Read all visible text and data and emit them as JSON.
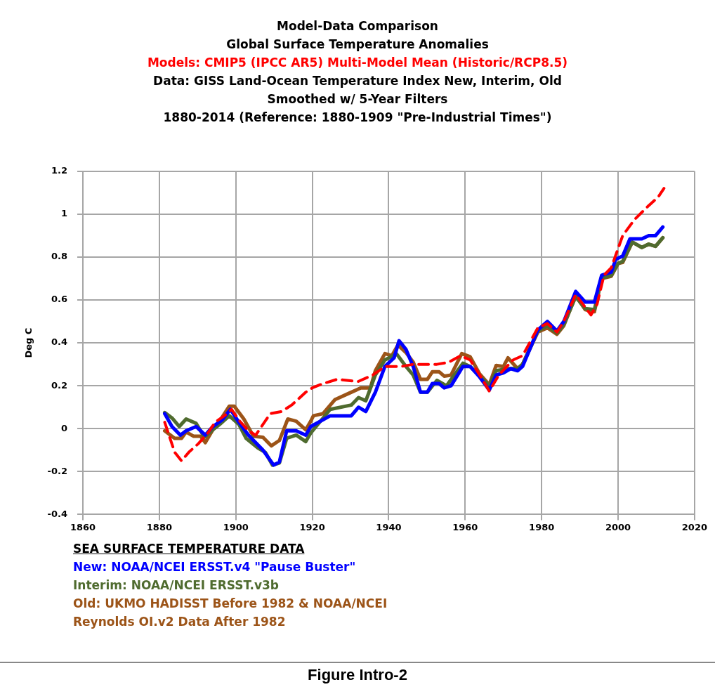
{
  "chart_data": {
    "type": "line",
    "title": "Model-Data Comparison",
    "subtitle": "Global Surface Temperature Anomalies",
    "ylabel": "Deg C",
    "legend_title": "SEA SURFACE TEMPERATURE DATA",
    "legend": "bottom left",
    "grid": true,
    "marker": "none",
    "xlim": [
      1860,
      2020
    ],
    "xticks": [
      1860,
      1880,
      1900,
      1920,
      1940,
      1960,
      1980,
      2000,
      2020
    ],
    "ylim": [
      -0.4,
      1.2
    ],
    "yticks": [
      -0.4,
      -0.2,
      0,
      0.2,
      0.4,
      0.6,
      0.8,
      1,
      1.2
    ],
    "annotations": [
      "Data: GISS Land-Ocean Temperature Index New, Interim, Old",
      "Smoothed w/ 5-Year Filters",
      "1880-2014 (Reference: 1880-1909 \"Pre-Industrial Times\")",
      "Figure Intro-2"
    ],
    "series": [
      {
        "name": "Models: CMIP5 (IPCC AR5) Multi-Model Mean (Historic/RCP8.5)",
        "color": "#ff0000",
        "line_style": "dashed",
        "x": [
          1881.4,
          1882.7,
          1884,
          1885.8,
          1887.7,
          1890.2,
          1892.7,
          1894.6,
          1897,
          1898.9,
          1900.8,
          1903.3,
          1905.2,
          1907.1,
          1909,
          1912,
          1914.6,
          1918.3,
          1920,
          1922.8,
          1926.5,
          1932,
          1935.8,
          1939,
          1943.3,
          1946.4,
          1952.6,
          1955.7,
          1958.8,
          1961.3,
          1963.8,
          1966.3,
          1968.8,
          1972.5,
          1975,
          1979,
          1981.5,
          1984,
          1985.8,
          1988.9,
          1990.8,
          1992.9,
          1994.5,
          1996.3,
          1998.2,
          2000,
          2001.2,
          2004.3,
          2008,
          2010.5,
          2012
        ],
        "values": [
          0.03,
          -0.04,
          -0.11,
          -0.15,
          -0.11,
          -0.07,
          -0.02,
          0.03,
          0.06,
          0.09,
          0.04,
          -0.01,
          -0.03,
          0.02,
          0.07,
          0.08,
          0.11,
          0.17,
          0.19,
          0.21,
          0.23,
          0.22,
          0.25,
          0.29,
          0.29,
          0.3,
          0.3,
          0.31,
          0.34,
          0.32,
          0.25,
          0.175,
          0.25,
          0.32,
          0.34,
          0.47,
          0.49,
          0.45,
          0.5,
          0.625,
          0.58,
          0.53,
          0.58,
          0.715,
          0.75,
          0.84,
          0.9,
          0.975,
          1.04,
          1.08,
          1.12
        ]
      },
      {
        "name": "New:  NOAA/NCEI ERSST.v4 \"Pause Buster\"",
        "color": "#0000ff",
        "x": [
          1881.4,
          1883.3,
          1885.5,
          1887,
          1889.6,
          1892,
          1894,
          1896.4,
          1898.6,
          1900.8,
          1903.3,
          1907.1,
          1909.9,
          1911.4,
          1913.3,
          1915.8,
          1918.3,
          1919.6,
          1924.7,
          1930.2,
          1932.1,
          1934,
          1936.5,
          1939,
          1941.4,
          1942.7,
          1944.5,
          1946.4,
          1948.3,
          1950.1,
          1951.4,
          1953.2,
          1954.5,
          1956.3,
          1959.4,
          1961.3,
          1963.8,
          1966.3,
          1968.1,
          1970,
          1971.9,
          1973.7,
          1975,
          1979,
          1981.5,
          1984,
          1985.8,
          1988.9,
          1991.4,
          1993.8,
          1995.7,
          1998.2,
          1999.4,
          2001.2,
          2003.1,
          2006.2,
          2008,
          2009.8,
          2011.7
        ],
        "values": [
          0.07,
          0.01,
          -0.03,
          -0.01,
          0.01,
          -0.03,
          0.01,
          0.04,
          0.09,
          0.03,
          -0.03,
          -0.1,
          -0.17,
          -0.155,
          -0.01,
          -0.01,
          -0.03,
          0.01,
          0.06,
          0.06,
          0.1,
          0.08,
          0.17,
          0.29,
          0.33,
          0.41,
          0.37,
          0.29,
          0.17,
          0.17,
          0.21,
          0.21,
          0.19,
          0.2,
          0.29,
          0.29,
          0.24,
          0.18,
          0.25,
          0.26,
          0.28,
          0.27,
          0.29,
          0.46,
          0.5,
          0.455,
          0.5,
          0.64,
          0.59,
          0.59,
          0.715,
          0.73,
          0.79,
          0.805,
          0.885,
          0.885,
          0.9,
          0.9,
          0.94
        ]
      },
      {
        "name": "Interim:  NOAA/NCEI ERSST.v3b",
        "color": "#4f6b2f",
        "x": [
          1881.4,
          1883.3,
          1885.2,
          1887,
          1889.6,
          1891.8,
          1894,
          1895.8,
          1898.3,
          1900.8,
          1902.7,
          1905.8,
          1907.7,
          1909.6,
          1911.4,
          1913.3,
          1915.8,
          1918.3,
          1919.6,
          1924.7,
          1930.2,
          1932.1,
          1934,
          1936.5,
          1939,
          1942,
          1944.5,
          1946.4,
          1948.3,
          1950.1,
          1952.6,
          1955.1,
          1959.4,
          1961.3,
          1966.3,
          1968.1,
          1971.2,
          1973.7,
          1975,
          1979,
          1981.5,
          1984,
          1985.8,
          1988.9,
          1991.4,
          1993.8,
          1995.7,
          1998.2,
          2000,
          2001.2,
          2003.7,
          2006.2,
          2008,
          2009.8,
          2011.7
        ],
        "values": [
          0.075,
          0.05,
          0.01,
          0.045,
          0.025,
          -0.04,
          -0.005,
          0.02,
          0.06,
          0.02,
          -0.045,
          -0.09,
          -0.11,
          -0.17,
          -0.16,
          -0.045,
          -0.03,
          -0.06,
          -0.02,
          0.09,
          0.11,
          0.145,
          0.13,
          0.25,
          0.32,
          0.35,
          0.29,
          0.25,
          0.17,
          0.17,
          0.225,
          0.2,
          0.305,
          0.29,
          0.2,
          0.27,
          0.28,
          0.28,
          0.3,
          0.455,
          0.48,
          0.445,
          0.485,
          0.615,
          0.56,
          0.555,
          0.7,
          0.715,
          0.77,
          0.78,
          0.87,
          0.845,
          0.86,
          0.85,
          0.89
        ]
      },
      {
        "name": "Old: UKMO HADISST Before 1982 & NOAA/NCEI Reynolds OI.v2 Data After 1982",
        "color": "#9c5418",
        "x": [
          1881.4,
          1884,
          1885.8,
          1887,
          1888.9,
          1890.8,
          1892,
          1894,
          1896.1,
          1898.3,
          1899.6,
          1902.1,
          1904.6,
          1907.1,
          1909.3,
          1911.4,
          1913.6,
          1915.8,
          1918.3,
          1919.6,
          1920.3,
          1922.8,
          1925.9,
          1929.6,
          1932.7,
          1935.2,
          1936.5,
          1939,
          1940.8,
          1942.4,
          1944.5,
          1946.4,
          1948.3,
          1950.1,
          1951.4,
          1953.2,
          1954.5,
          1956.3,
          1959.1,
          1961.3,
          1963.8,
          1966.3,
          1968.1,
          1970,
          1971.2,
          1973.7,
          1975,
          1979,
          1981.5,
          1984,
          1985.8,
          1988.9,
          1991.4,
          1993.8,
          1995.7,
          1998.2,
          2000,
          2001.2,
          2003.7,
          2006.2,
          2008,
          2009.8,
          2011.7
        ],
        "values": [
          -0.01,
          -0.045,
          -0.045,
          -0.015,
          -0.035,
          -0.035,
          -0.065,
          -0.005,
          0.045,
          0.105,
          0.105,
          0.045,
          -0.035,
          -0.04,
          -0.08,
          -0.055,
          0.045,
          0.035,
          -0.005,
          0.035,
          0.06,
          0.07,
          0.135,
          0.165,
          0.19,
          0.19,
          0.27,
          0.35,
          0.34,
          0.39,
          0.355,
          0.31,
          0.23,
          0.23,
          0.265,
          0.265,
          0.245,
          0.25,
          0.35,
          0.335,
          0.255,
          0.205,
          0.295,
          0.29,
          0.33,
          0.28,
          0.3,
          0.45,
          0.47,
          0.44,
          0.48,
          0.62,
          0.555,
          0.545,
          0.7,
          0.71,
          0.77,
          0.775,
          0.87,
          0.845,
          0.86,
          0.85,
          0.89
        ]
      }
    ]
  }
}
